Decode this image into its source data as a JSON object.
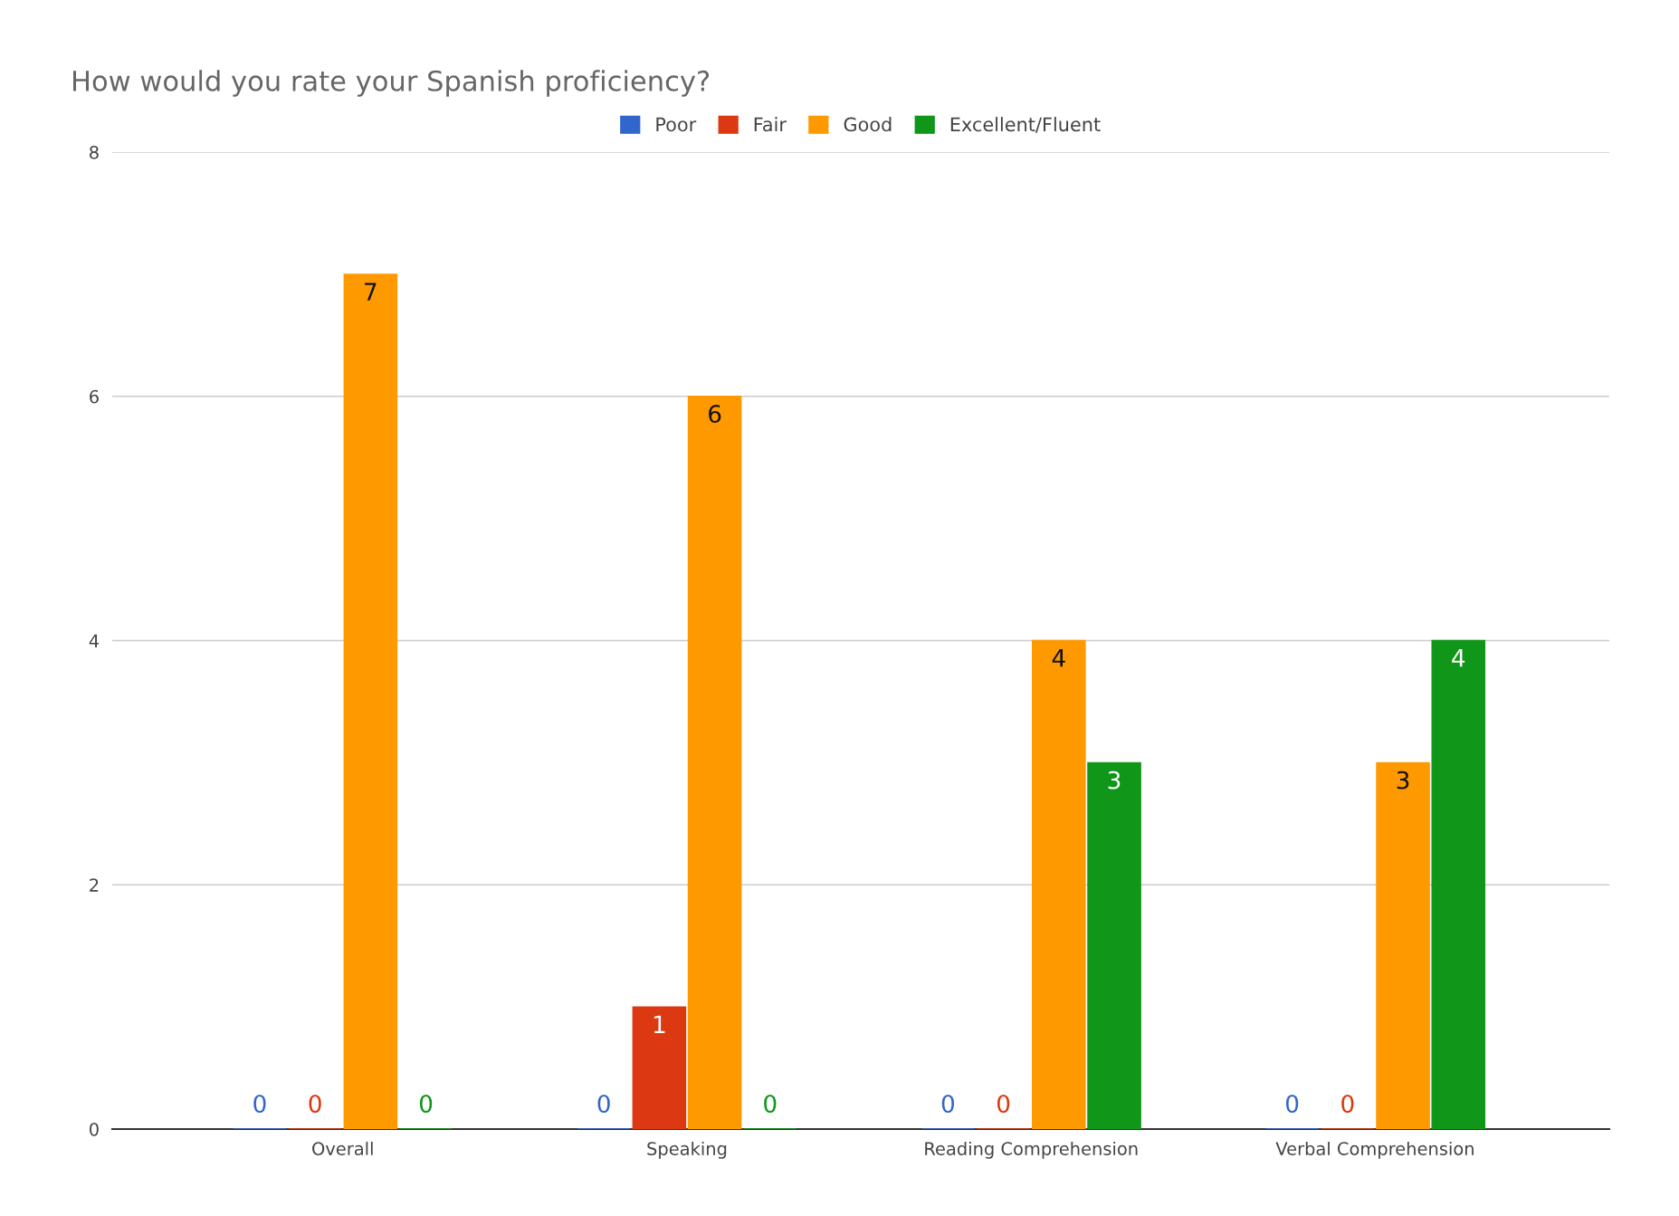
{
  "chart_data": {
    "type": "bar",
    "title": "How would you rate your Spanish proficiency?",
    "categories": [
      "Overall",
      "Speaking",
      "Reading Comprehension",
      "Verbal Comprehension"
    ],
    "series": [
      {
        "name": "Poor",
        "color": "#3366cc",
        "values": [
          0,
          0,
          0,
          0
        ]
      },
      {
        "name": "Fair",
        "color": "#dc3912",
        "values": [
          0,
          1,
          0,
          0
        ]
      },
      {
        "name": "Good",
        "color": "#ff9900",
        "values": [
          7,
          6,
          4,
          3
        ]
      },
      {
        "name": "Excellent/Fluent",
        "color": "#109618",
        "values": [
          0,
          0,
          3,
          4
        ]
      }
    ],
    "ylim": [
      0,
      8
    ],
    "yticks": [
      0,
      2,
      4,
      6,
      8
    ],
    "grid": "y",
    "legend": "top",
    "data_labels": true
  }
}
